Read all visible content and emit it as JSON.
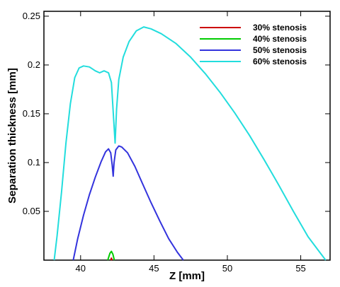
{
  "chart_data": {
    "type": "line",
    "title": "",
    "xlabel": "Z [mm]",
    "ylabel": "Separation thickness [mm]",
    "xlim": [
      37.5,
      57
    ],
    "ylim": [
      0,
      0.255
    ],
    "xticks": [
      40,
      45,
      50,
      55
    ],
    "yticks": [
      0.05,
      0.1,
      0.15,
      0.2,
      0.25
    ],
    "grid": false,
    "legend_position": "top-right",
    "series": [
      {
        "name": "30% stenosis",
        "color": "#cc0000",
        "points": [
          [
            42.05,
            0.0
          ],
          [
            42.1,
            0.002
          ],
          [
            42.15,
            0.0
          ]
        ]
      },
      {
        "name": "40% stenosis",
        "color": "#00cc00",
        "points": [
          [
            41.85,
            0.0
          ],
          [
            42.0,
            0.007
          ],
          [
            42.1,
            0.009
          ],
          [
            42.2,
            0.006
          ],
          [
            42.3,
            0.0
          ]
        ]
      },
      {
        "name": "50% stenosis",
        "color": "#3333dd",
        "points": [
          [
            39.5,
            0.0
          ],
          [
            39.8,
            0.022
          ],
          [
            40.2,
            0.046
          ],
          [
            40.6,
            0.067
          ],
          [
            41.0,
            0.085
          ],
          [
            41.4,
            0.101
          ],
          [
            41.7,
            0.111
          ],
          [
            41.9,
            0.114
          ],
          [
            42.05,
            0.11
          ],
          [
            42.15,
            0.098
          ],
          [
            42.22,
            0.086
          ],
          [
            42.28,
            0.1
          ],
          [
            42.4,
            0.113
          ],
          [
            42.6,
            0.117
          ],
          [
            42.8,
            0.116
          ],
          [
            43.2,
            0.11
          ],
          [
            43.7,
            0.096
          ],
          [
            44.2,
            0.079
          ],
          [
            44.8,
            0.059
          ],
          [
            45.4,
            0.04
          ],
          [
            46.0,
            0.022
          ],
          [
            46.6,
            0.008
          ],
          [
            47.0,
            0.0
          ]
        ]
      },
      {
        "name": "60% stenosis",
        "color": "#22dddd",
        "points": [
          [
            38.2,
            0.0
          ],
          [
            38.4,
            0.025
          ],
          [
            38.7,
            0.07
          ],
          [
            39.0,
            0.12
          ],
          [
            39.3,
            0.16
          ],
          [
            39.6,
            0.187
          ],
          [
            39.9,
            0.197
          ],
          [
            40.2,
            0.199
          ],
          [
            40.6,
            0.198
          ],
          [
            41.0,
            0.194
          ],
          [
            41.3,
            0.192
          ],
          [
            41.6,
            0.194
          ],
          [
            41.9,
            0.192
          ],
          [
            42.1,
            0.182
          ],
          [
            42.25,
            0.145
          ],
          [
            42.35,
            0.12
          ],
          [
            42.45,
            0.155
          ],
          [
            42.6,
            0.185
          ],
          [
            42.9,
            0.208
          ],
          [
            43.3,
            0.224
          ],
          [
            43.8,
            0.235
          ],
          [
            44.3,
            0.239
          ],
          [
            44.8,
            0.237
          ],
          [
            45.5,
            0.232
          ],
          [
            46.5,
            0.222
          ],
          [
            47.5,
            0.208
          ],
          [
            48.5,
            0.191
          ],
          [
            49.5,
            0.172
          ],
          [
            50.5,
            0.151
          ],
          [
            51.5,
            0.128
          ],
          [
            52.5,
            0.103
          ],
          [
            53.5,
            0.077
          ],
          [
            54.5,
            0.05
          ],
          [
            55.5,
            0.024
          ],
          [
            56.3,
            0.008
          ],
          [
            56.7,
            0.0
          ]
        ]
      }
    ]
  }
}
